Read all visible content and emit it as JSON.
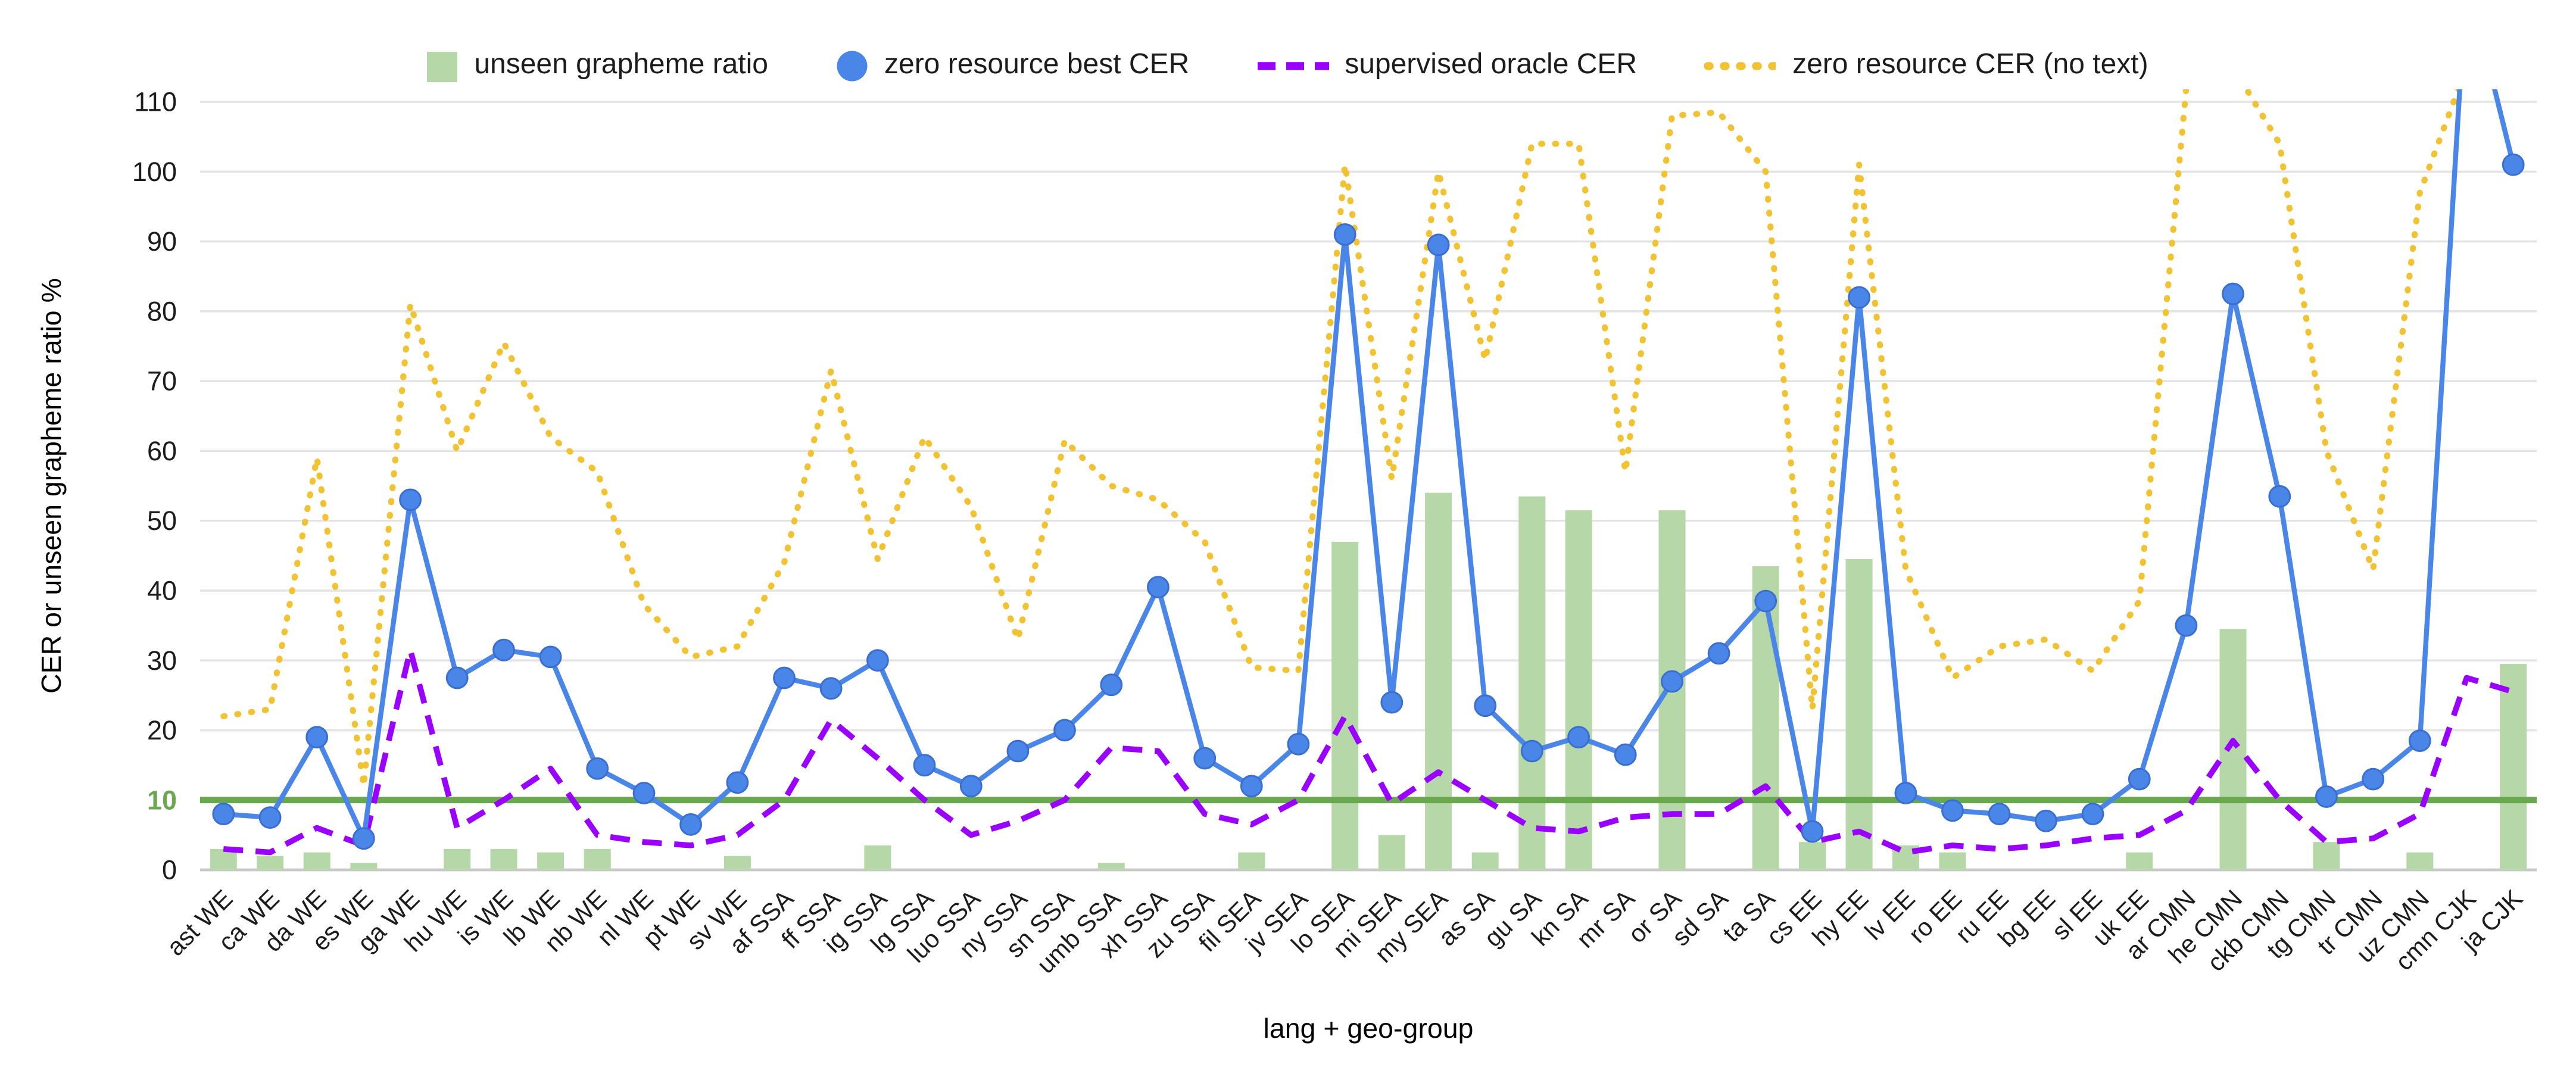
{
  "page": {
    "background": "#ffffff"
  },
  "chart_data": {
    "type": "combo-bar-line",
    "title": "",
    "xlabel": "lang + geo-group",
    "ylabel": "CER or unseen grapheme ratio %",
    "ylim": [
      0,
      110
    ],
    "yticks": [
      0,
      10,
      20,
      30,
      40,
      50,
      60,
      70,
      80,
      90,
      100,
      110
    ],
    "grid": true,
    "legend_position": "top",
    "reference_line": {
      "y": 10,
      "color": "#6aa84f"
    },
    "categories": [
      "ast WE",
      "ca WE",
      "da WE",
      "es WE",
      "ga WE",
      "hu WE",
      "is WE",
      "lb WE",
      "nb WE",
      "nl WE",
      "pt WE",
      "sv WE",
      "af SSA",
      "ff SSA",
      "ig SSA",
      "lg SSA",
      "luo SSA",
      "ny SSA",
      "sn SSA",
      "umb SSA",
      "xh SSA",
      "zu SSA",
      "fil SEA",
      "jv SEA",
      "lo SEA",
      "mi SEA",
      "my SEA",
      "as SA",
      "gu SA",
      "kn SA",
      "mr SA",
      "or SA",
      "sd SA",
      "ta SA",
      "cs EE",
      "hy EE",
      "lv EE",
      "ro EE",
      "ru EE",
      "bg EE",
      "sl EE",
      "uk EE",
      "ar CMN",
      "he CMN",
      "ckb CMN",
      "tg CMN",
      "tr CMN",
      "uz CMN",
      "cmn CJK",
      "ja CJK"
    ],
    "series": [
      {
        "name": "unseen grapheme ratio",
        "type": "bar",
        "color": "#b6d7a8",
        "values": [
          3,
          2,
          2.5,
          1,
          0,
          3,
          3,
          2.5,
          3,
          0,
          0,
          2,
          0,
          0,
          3.5,
          0,
          0,
          0,
          0,
          1,
          0,
          0,
          2.5,
          0,
          47,
          5,
          54,
          2.5,
          53.5,
          51.5,
          0,
          51.5,
          0,
          43.5,
          4,
          44.5,
          3.5,
          2.5,
          0,
          0,
          0,
          2.5,
          0,
          34.5,
          0,
          4,
          0,
          2.5,
          0,
          29.5
        ]
      },
      {
        "name": "zero resource best CER",
        "type": "line",
        "style": "solid",
        "marker": "circle",
        "color": "#4a86e8",
        "values": [
          8,
          7.5,
          19,
          4.5,
          53,
          27.5,
          31.5,
          30.5,
          14.5,
          11,
          6.5,
          12.5,
          27.5,
          26,
          30,
          15,
          12,
          17,
          20,
          26.5,
          40.5,
          16,
          12,
          18,
          91,
          24,
          89.5,
          23.5,
          17,
          19,
          16.5,
          27,
          31,
          38.5,
          5.5,
          82,
          11,
          8.5,
          8,
          7,
          8,
          13,
          35,
          82.5,
          53.5,
          10.5,
          13,
          18.5,
          128,
          101
        ]
      },
      {
        "name": "supervised oracle CER",
        "type": "line",
        "style": "dashed",
        "color": "#9900ff",
        "values": [
          3,
          2.5,
          6,
          3.5,
          31.5,
          6,
          10,
          14.5,
          5,
          4,
          3.5,
          5,
          10,
          21.5,
          16,
          10,
          5,
          7,
          10,
          17.5,
          17,
          8,
          6.5,
          10,
          22,
          9.5,
          14,
          10,
          6,
          5.5,
          7.5,
          8,
          8,
          12,
          4,
          5.5,
          2.5,
          3.5,
          3,
          3.5,
          4.5,
          5,
          8.5,
          18.5,
          10,
          4,
          4.5,
          8,
          27.5,
          25.5
        ]
      },
      {
        "name": "zero resource CER (no text)",
        "type": "line",
        "style": "dotted",
        "color": "#f1c232",
        "values": [
          22,
          23,
          59,
          12,
          81,
          60,
          75.5,
          62,
          57,
          38,
          30.5,
          32,
          44,
          71.5,
          44.5,
          62,
          52,
          33,
          61.5,
          55,
          53,
          47,
          29,
          28.5,
          101,
          56,
          100,
          73,
          104,
          104,
          57,
          108,
          108.5,
          100,
          23,
          101,
          43,
          27.5,
          32,
          33,
          28.5,
          38.5,
          112,
          115,
          104,
          60,
          43,
          97,
          115,
          112
        ]
      }
    ]
  }
}
